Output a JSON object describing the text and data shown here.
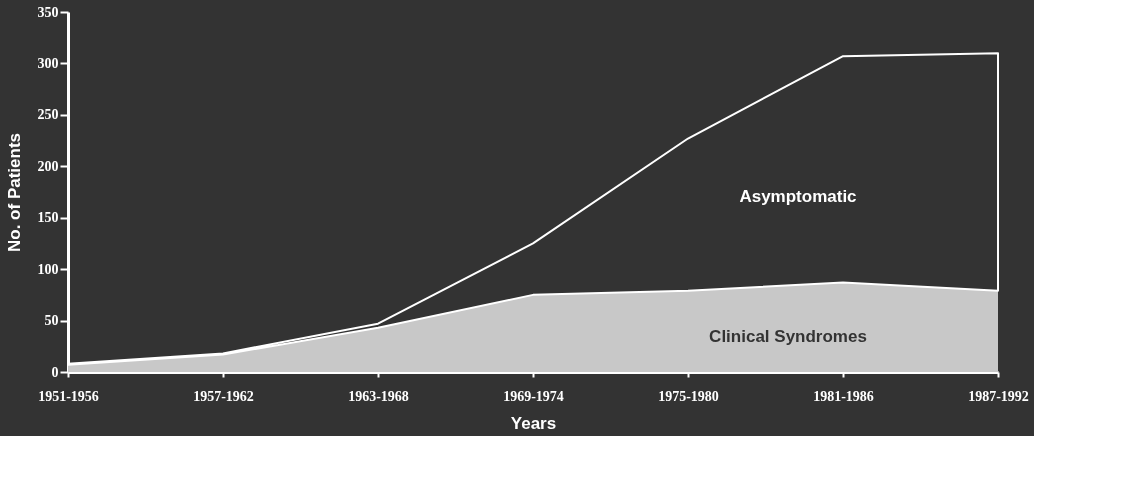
{
  "chart_data": {
    "type": "area",
    "stacked": true,
    "xlabel": "Years",
    "ylabel": "No. of Patients",
    "categories": [
      "1951-1956",
      "1957-1962",
      "1963-1968",
      "1969-1974",
      "1975-1980",
      "1981-1986",
      "1987-1992"
    ],
    "series": [
      {
        "name": "Clinical Syndromes",
        "color": "#c8c8c8",
        "values": [
          7,
          17,
          43,
          75,
          79,
          87,
          79
        ]
      },
      {
        "name": "Asymptomatic",
        "color": "#333333",
        "values": [
          1,
          1,
          4,
          50,
          148,
          220,
          231
        ]
      }
    ],
    "ylim": [
      0,
      350
    ],
    "yticks": [
      0,
      50,
      100,
      150,
      200,
      250,
      300,
      350
    ],
    "grid": false,
    "legend": false
  }
}
